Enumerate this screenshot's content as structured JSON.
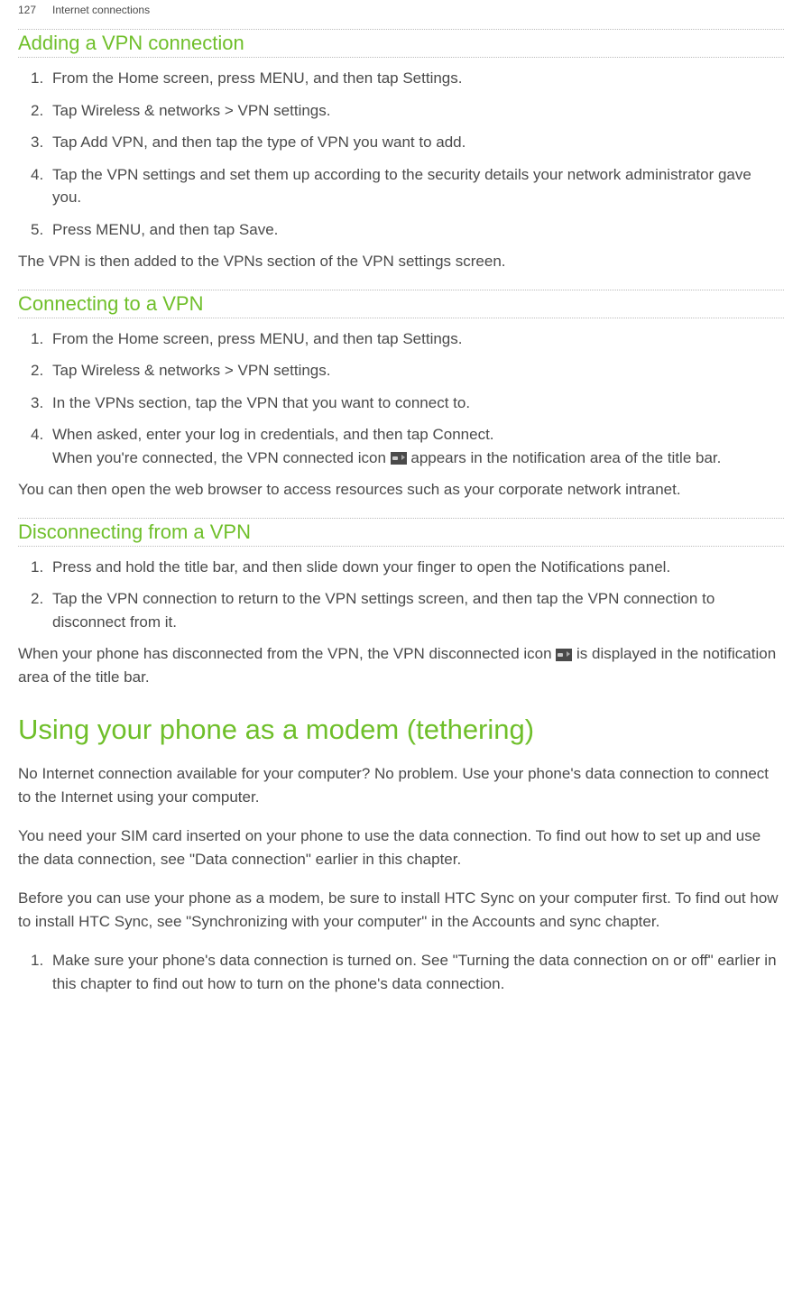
{
  "header": {
    "page_number": "127",
    "chapter": "Internet connections"
  },
  "section1": {
    "title": "Adding a VPN connection",
    "items": [
      "From the Home screen, press MENU, and then tap Settings.",
      "Tap Wireless & networks > VPN settings.",
      "Tap Add VPN, and then tap the type of VPN you want to add.",
      "Tap the VPN settings and set them up according to the security details your network administrator gave you.",
      "Press MENU, and then tap Save."
    ],
    "footer": "The VPN is then added to the VPNs section of the VPN settings screen."
  },
  "section2": {
    "title": "Connecting to a VPN",
    "items": [
      "From the Home screen, press MENU, and then tap Settings.",
      "Tap Wireless & networks > VPN settings.",
      "In the VPNs section, tap the VPN that you want to connect to."
    ],
    "item4_a": "When asked, enter your log in credentials, and then tap Connect.",
    "item4_b": "When you're connected, the VPN connected icon ",
    "item4_c": " appears in the notification area of the title bar.",
    "footer": "You can then open the web browser to access resources such as your corporate network intranet."
  },
  "section3": {
    "title": "Disconnecting from a VPN",
    "items": [
      "Press and hold the title bar, and then slide down your finger to open the Notifications panel.",
      "Tap the VPN connection to return to the VPN settings screen, and then tap the VPN connection to disconnect from it."
    ],
    "footer_a": "When your phone has disconnected from the VPN, the VPN disconnected icon ",
    "footer_b": " is displayed in the notification area of the title bar."
  },
  "mainTitle": "Using your phone as a modem (tethering)",
  "modem": {
    "p1": "No Internet connection available for your computer? No problem. Use your phone's data connection to connect to the Internet using your computer.",
    "p2": "You need your SIM card inserted on your phone to use the data connection. To find out how to set up and use the data connection, see \"Data connection\" earlier in this chapter.",
    "p3": "Before you can use your phone as a modem, be sure to install HTC Sync on your computer first. To find out how to install HTC Sync, see \"Synchronizing with your computer\" in the Accounts and sync chapter.",
    "step1": "Make sure your phone's data connection is turned on. See \"Turning the data connection on or off\" earlier in this chapter to find out how to turn on the phone's data connection."
  },
  "nums": [
    "1.",
    "2.",
    "3.",
    "4.",
    "5."
  ]
}
